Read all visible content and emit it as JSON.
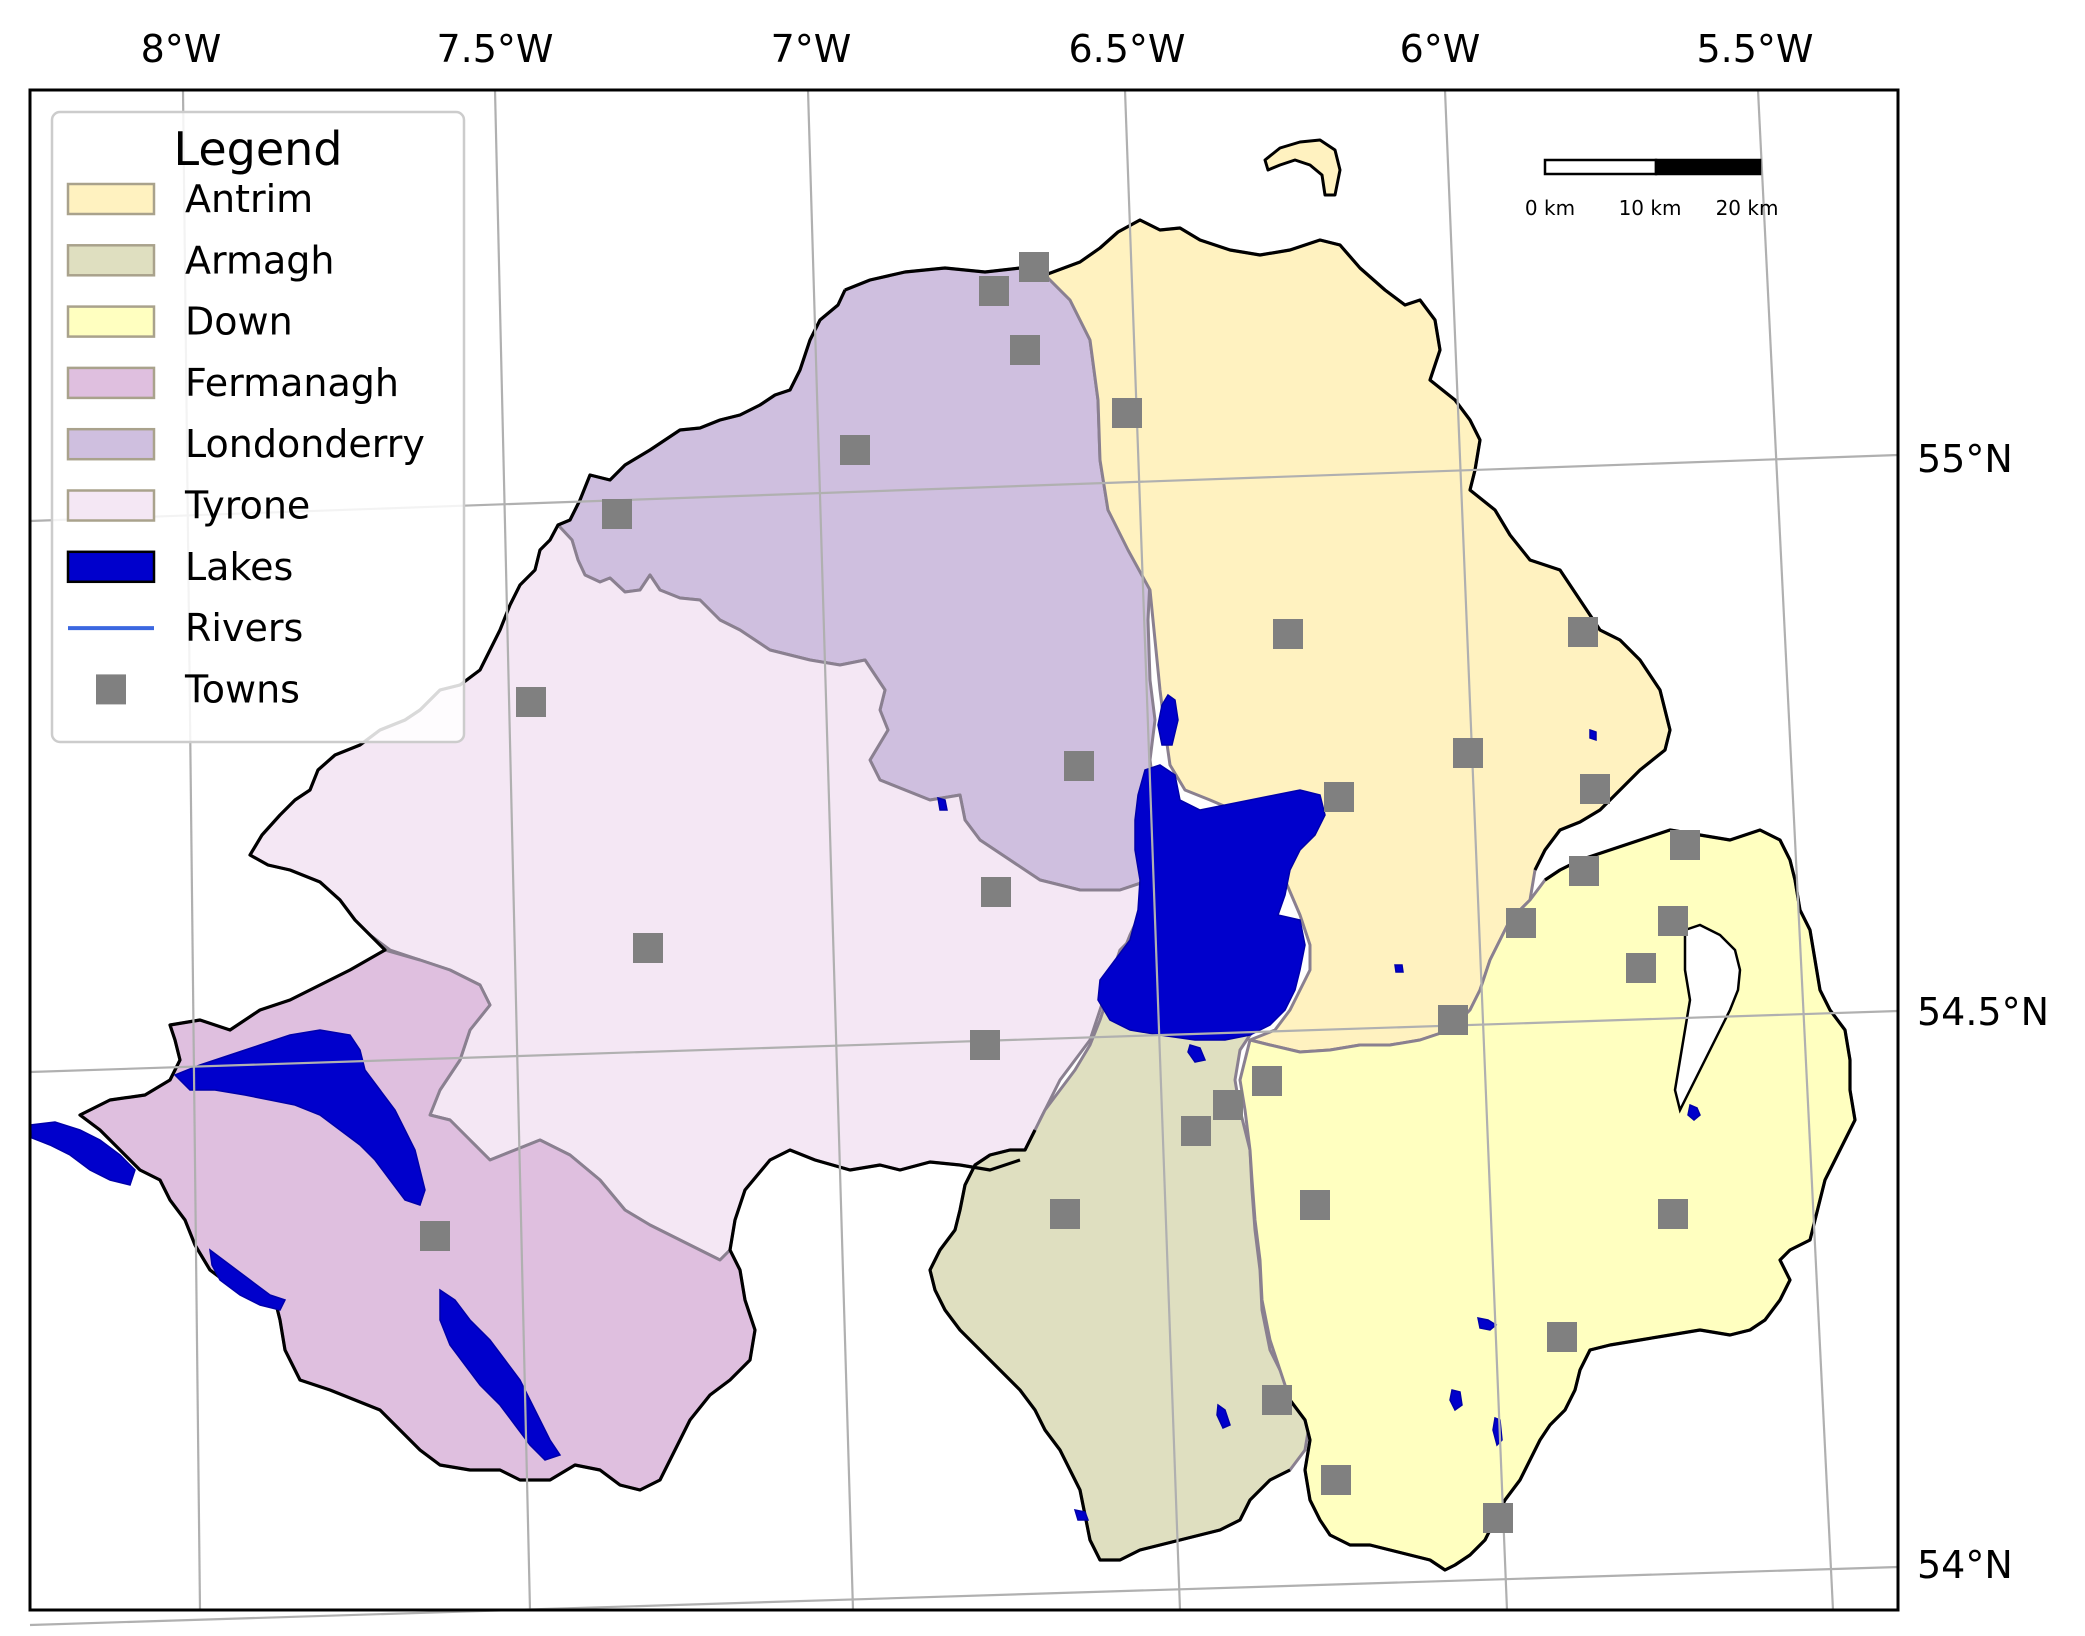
{
  "map": {
    "lon_ticks": [
      "8°W",
      "7.5°W",
      "7°W",
      "6.5°W",
      "6°W",
      "5.5°W"
    ],
    "lat_ticks": [
      "55°N",
      "54.5°N",
      "54°N"
    ],
    "scale_bar": {
      "labels": [
        "0 km",
        "10 km",
        "20 km"
      ]
    }
  },
  "legend": {
    "title": "Legend",
    "items": [
      {
        "label": "Antrim",
        "kind": "patch",
        "color": "#fff2c0"
      },
      {
        "label": "Armagh",
        "kind": "patch",
        "color": "#dfdfc0"
      },
      {
        "label": "Down",
        "kind": "patch",
        "color": "#ffffc0"
      },
      {
        "label": "Fermanagh",
        "kind": "patch",
        "color": "#dfbfdf"
      },
      {
        "label": "Londonderry",
        "kind": "patch",
        "color": "#cfbfdf"
      },
      {
        "label": "Tyrone",
        "kind": "patch",
        "color": "#f4e7f4"
      },
      {
        "label": "Lakes",
        "kind": "patch",
        "color": "#0000cc"
      },
      {
        "label": "Rivers",
        "kind": "line",
        "color": "#3b67e0"
      },
      {
        "label": "Towns",
        "kind": "marker",
        "color": "#808080"
      }
    ]
  }
}
